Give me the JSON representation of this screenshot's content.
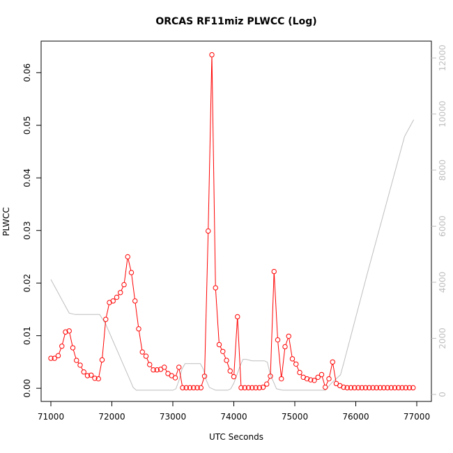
{
  "chart_data": {
    "type": "line",
    "title": "ORCAS RF11miz PLWCC (Log)",
    "xlabel": "UTC Seconds",
    "ylabel": "PLWCC",
    "xlim": [
      70840,
      77240
    ],
    "ylim": [
      -0.0025,
      0.066
    ],
    "y2lim": [
      -250,
      12600
    ],
    "x_ticks": [
      71000,
      72000,
      73000,
      74000,
      75000,
      76000,
      77000
    ],
    "y_ticks": [
      0.0,
      0.01,
      0.02,
      0.03,
      0.04,
      0.05,
      0.06
    ],
    "y_tick_labels": [
      "0.00",
      "0.01",
      "0.02",
      "0.03",
      "0.04",
      "0.05",
      "0.06"
    ],
    "y2_ticks": [
      0,
      2000,
      4000,
      6000,
      8000,
      10000,
      12000
    ],
    "grid": false,
    "colors": {
      "primary": "#ff0000",
      "secondary": "#bebebe"
    },
    "series": [
      {
        "axis": "left",
        "style": "line-with-circle-markers",
        "color": "#ff0000",
        "x": [
          71000,
          71060,
          71120,
          71180,
          71240,
          71300,
          71360,
          71420,
          71480,
          71540,
          71600,
          71660,
          71720,
          71780,
          71840,
          71900,
          71960,
          72020,
          72080,
          72140,
          72200,
          72260,
          72320,
          72380,
          72440,
          72500,
          72560,
          72620,
          72680,
          72740,
          72800,
          72860,
          72920,
          72980,
          73040,
          73100,
          73160,
          73220,
          73280,
          73340,
          73400,
          73460,
          73520,
          73580,
          73640,
          73700,
          73760,
          73820,
          73880,
          73940,
          74000,
          74060,
          74120,
          74180,
          74240,
          74300,
          74360,
          74420,
          74480,
          74540,
          74600,
          74660,
          74720,
          74780,
          74840,
          74900,
          74960,
          75020,
          75080,
          75140,
          75200,
          75260,
          75320,
          75380,
          75440,
          75500,
          75560,
          75620,
          75680,
          75740,
          75800,
          75860,
          75920,
          75980,
          76040,
          76100,
          76160,
          76220,
          76280,
          76340,
          76400,
          76460,
          76520,
          76580,
          76640,
          76700,
          76760,
          76820,
          76880,
          76940
        ],
        "y": [
          0.0057,
          0.0057,
          0.0062,
          0.008,
          0.0107,
          0.0109,
          0.0077,
          0.0053,
          0.0044,
          0.0031,
          0.0024,
          0.0025,
          0.0019,
          0.0018,
          0.0054,
          0.0131,
          0.0163,
          0.0166,
          0.0173,
          0.0182,
          0.0197,
          0.025,
          0.022,
          0.0166,
          0.0113,
          0.0069,
          0.0061,
          0.0045,
          0.0035,
          0.0035,
          0.0036,
          0.004,
          0.0028,
          0.0024,
          0.002,
          0.004,
          0.0001,
          0.0001,
          0.0001,
          0.0001,
          0.0001,
          0.0001,
          0.0023,
          0.0299,
          0.0634,
          0.0191,
          0.0083,
          0.007,
          0.0053,
          0.0033,
          0.0022,
          0.0136,
          0.0001,
          0.0001,
          0.0001,
          0.0001,
          0.0001,
          0.0001,
          0.0002,
          0.0008,
          0.0023,
          0.0222,
          0.0092,
          0.0018,
          0.0079,
          0.0099,
          0.0056,
          0.0046,
          0.003,
          0.0021,
          0.0018,
          0.0016,
          0.0015,
          0.0021,
          0.0026,
          0.0002,
          0.0018,
          0.005,
          0.0009,
          0.0005,
          0.0002,
          0.0001,
          0.0001,
          0.0001,
          0.0001,
          0.0001,
          0.0001,
          0.0001,
          0.0001,
          0.0001,
          0.0001,
          0.0001,
          0.0001,
          0.0001,
          0.0001,
          0.0001,
          0.0001,
          0.0001,
          0.0001,
          0.0001
        ]
      },
      {
        "axis": "right",
        "style": "line",
        "color": "#bebebe",
        "x": [
          71000,
          71100,
          71200,
          71300,
          71400,
          71500,
          71600,
          71700,
          71800,
          71900,
          72000,
          72100,
          72200,
          72300,
          72350,
          72400,
          72500,
          72600,
          72700,
          72800,
          72900,
          73000,
          73050,
          73100,
          73150,
          73200,
          73300,
          73400,
          73450,
          73500,
          73550,
          73600,
          73700,
          73800,
          73900,
          73950,
          74000,
          74050,
          74100,
          74150,
          74200,
          74300,
          74400,
          74500,
          74550,
          74600,
          74700,
          74800,
          74900,
          75000,
          75100,
          75200,
          75300,
          75400,
          75500,
          75600,
          75700,
          75750,
          75800,
          76000,
          76200,
          76400,
          76600,
          76800,
          76950
        ],
        "y": [
          4100,
          3700,
          3300,
          2900,
          2850,
          2850,
          2850,
          2850,
          2850,
          2500,
          2000,
          1500,
          1000,
          500,
          250,
          150,
          150,
          150,
          150,
          150,
          150,
          150,
          200,
          500,
          900,
          1100,
          1100,
          1100,
          1100,
          900,
          500,
          250,
          150,
          150,
          150,
          200,
          400,
          700,
          1000,
          1250,
          1250,
          1200,
          1200,
          1200,
          1150,
          700,
          200,
          150,
          150,
          150,
          150,
          150,
          150,
          150,
          150,
          400,
          600,
          700,
          1100,
          2750,
          4400,
          6000,
          7600,
          9200,
          9800
        ]
      }
    ]
  }
}
